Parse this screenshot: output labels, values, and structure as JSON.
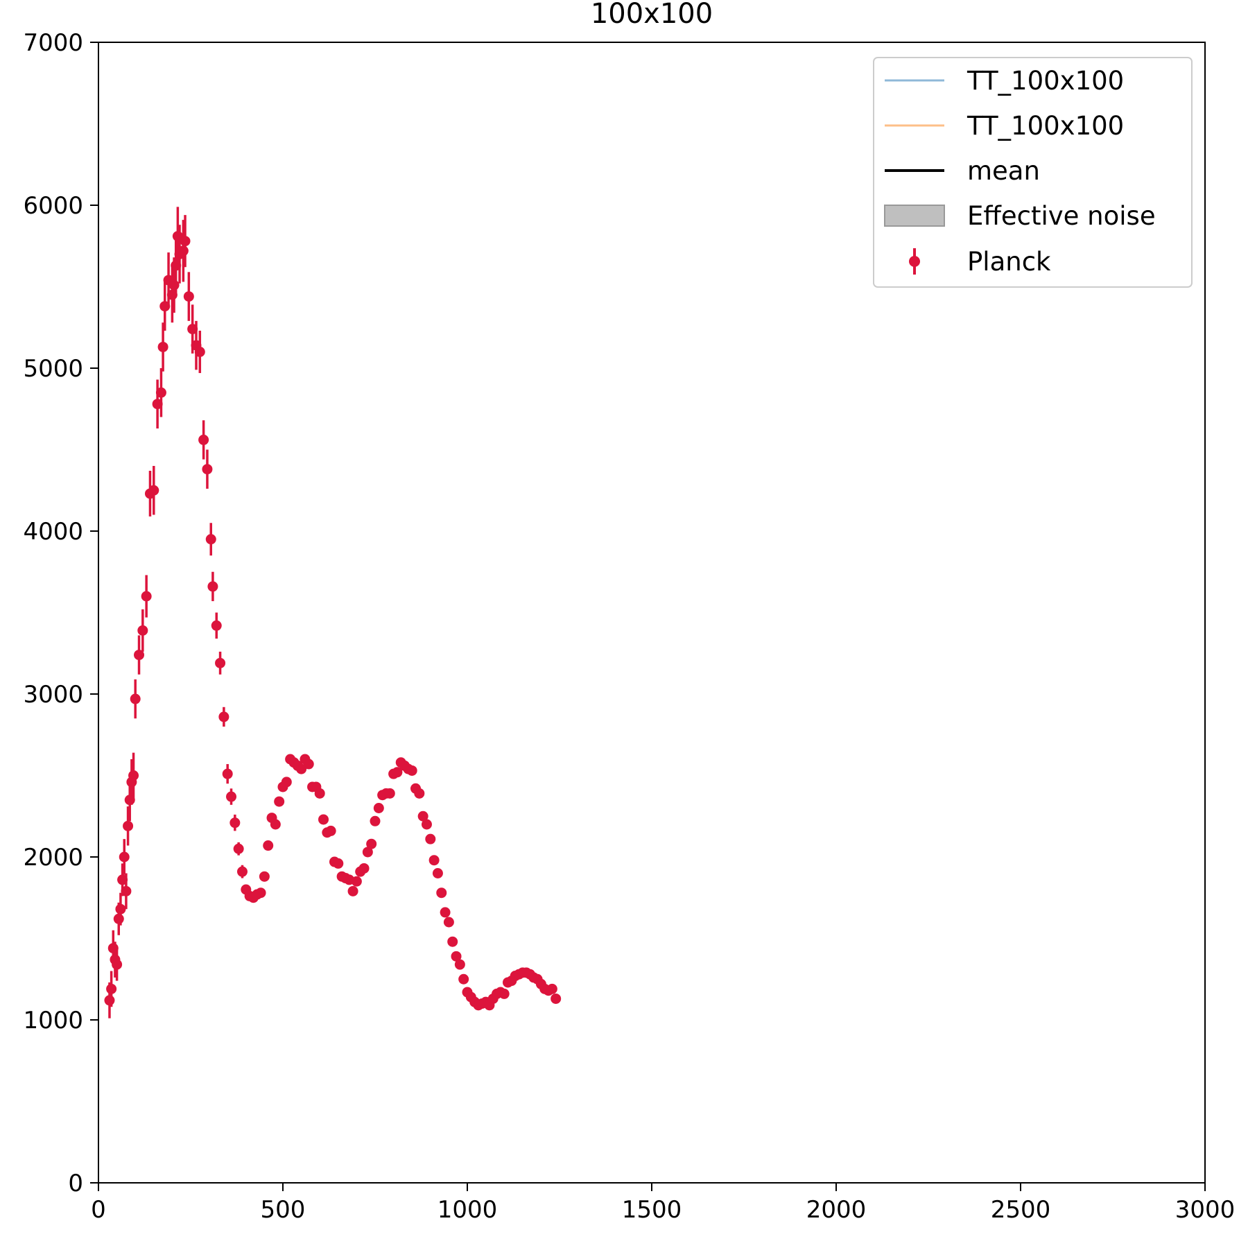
{
  "chart_data": {
    "type": "scatter",
    "title": "100x100",
    "xlabel": "",
    "ylabel": "",
    "xlim": [
      0,
      3000
    ],
    "ylim": [
      0,
      7000
    ],
    "x_ticks": [
      0,
      500,
      1000,
      1500,
      2000,
      2500,
      3000
    ],
    "x_tick_labels": [
      "0",
      "500",
      "1000",
      "1500",
      "2000",
      "2500",
      "3000"
    ],
    "y_ticks": [
      0,
      1000,
      2000,
      3000,
      4000,
      5000,
      6000,
      7000
    ],
    "y_tick_labels": [
      "0",
      "1000",
      "2000",
      "3000",
      "4000",
      "5000",
      "6000",
      "7000"
    ],
    "grid": false,
    "legend_position": "top-right",
    "legend": [
      {
        "label": "TT_100x100",
        "kind": "line",
        "color": "#8fb8d8"
      },
      {
        "label": "TT_100x100",
        "kind": "line",
        "color": "#fdbf88"
      },
      {
        "label": "mean",
        "kind": "line",
        "color": "#000000"
      },
      {
        "label": "Effective noise",
        "kind": "patch",
        "color": "#bfbfbf"
      },
      {
        "label": "Planck",
        "kind": "errorbar",
        "color": "#dc143c"
      }
    ],
    "series": [
      {
        "name": "Planck",
        "color": "#dc143c",
        "points": [
          [
            30,
            1120,
            110
          ],
          [
            35,
            1190,
            110
          ],
          [
            40,
            1440,
            110
          ],
          [
            45,
            1370,
            110
          ],
          [
            50,
            1340,
            100
          ],
          [
            55,
            1620,
            100
          ],
          [
            60,
            1680,
            100
          ],
          [
            65,
            1860,
            100
          ],
          [
            70,
            2000,
            110
          ],
          [
            75,
            1790,
            110
          ],
          [
            80,
            2190,
            120
          ],
          [
            85,
            2350,
            130
          ],
          [
            90,
            2460,
            140
          ],
          [
            95,
            2500,
            140
          ],
          [
            100,
            2970,
            120
          ],
          [
            110,
            3240,
            120
          ],
          [
            120,
            3390,
            130
          ],
          [
            130,
            3600,
            130
          ],
          [
            140,
            4230,
            140
          ],
          [
            150,
            4250,
            150
          ],
          [
            160,
            4780,
            150
          ],
          [
            170,
            4850,
            150
          ],
          [
            175,
            5130,
            150
          ],
          [
            180,
            5380,
            150
          ],
          [
            190,
            5540,
            170
          ],
          [
            200,
            5450,
            170
          ],
          [
            205,
            5510,
            170
          ],
          [
            210,
            5630,
            180
          ],
          [
            215,
            5810,
            180
          ],
          [
            220,
            5700,
            180
          ],
          [
            230,
            5720,
            190
          ],
          [
            235,
            5780,
            160
          ],
          [
            245,
            5440,
            150
          ],
          [
            255,
            5240,
            150
          ],
          [
            265,
            5140,
            150
          ],
          [
            275,
            5100,
            130
          ],
          [
            285,
            4560,
            120
          ],
          [
            295,
            4380,
            120
          ],
          [
            305,
            3950,
            100
          ],
          [
            310,
            3660,
            90
          ],
          [
            320,
            3420,
            80
          ],
          [
            330,
            3190,
            70
          ],
          [
            340,
            2860,
            60
          ],
          [
            350,
            2510,
            60
          ],
          [
            360,
            2370,
            50
          ],
          [
            370,
            2210,
            50
          ],
          [
            380,
            2050,
            40
          ],
          [
            390,
            1910,
            40
          ],
          [
            400,
            1800,
            30
          ],
          [
            410,
            1760,
            30
          ],
          [
            420,
            1750,
            30
          ],
          [
            430,
            1770,
            30
          ],
          [
            440,
            1780,
            30
          ],
          [
            450,
            1880,
            30
          ],
          [
            460,
            2070,
            30
          ],
          [
            470,
            2240,
            30
          ],
          [
            480,
            2200,
            30
          ],
          [
            490,
            2340,
            30
          ],
          [
            500,
            2430,
            30
          ],
          [
            510,
            2460,
            30
          ],
          [
            520,
            2600,
            30
          ],
          [
            530,
            2580,
            30
          ],
          [
            540,
            2560,
            30
          ],
          [
            550,
            2540,
            30
          ],
          [
            560,
            2600,
            30
          ],
          [
            570,
            2570,
            30
          ],
          [
            580,
            2430,
            30
          ],
          [
            590,
            2430,
            30
          ],
          [
            600,
            2390,
            30
          ],
          [
            610,
            2230,
            30
          ],
          [
            620,
            2150,
            30
          ],
          [
            630,
            2160,
            30
          ],
          [
            640,
            1970,
            30
          ],
          [
            650,
            1960,
            30
          ],
          [
            660,
            1880,
            30
          ],
          [
            670,
            1870,
            30
          ],
          [
            680,
            1860,
            30
          ],
          [
            690,
            1790,
            30
          ],
          [
            700,
            1850,
            30
          ],
          [
            710,
            1910,
            30
          ],
          [
            720,
            1930,
            30
          ],
          [
            730,
            2030,
            30
          ],
          [
            740,
            2080,
            30
          ],
          [
            750,
            2220,
            30
          ],
          [
            760,
            2300,
            30
          ],
          [
            770,
            2380,
            30
          ],
          [
            780,
            2390,
            30
          ],
          [
            790,
            2390,
            30
          ],
          [
            800,
            2510,
            30
          ],
          [
            810,
            2520,
            30
          ],
          [
            820,
            2580,
            30
          ],
          [
            830,
            2560,
            30
          ],
          [
            840,
            2540,
            30
          ],
          [
            850,
            2530,
            30
          ],
          [
            860,
            2420,
            30
          ],
          [
            870,
            2390,
            30
          ],
          [
            880,
            2250,
            30
          ],
          [
            890,
            2200,
            30
          ],
          [
            900,
            2110,
            30
          ],
          [
            910,
            1980,
            30
          ],
          [
            920,
            1900,
            30
          ],
          [
            930,
            1780,
            30
          ],
          [
            940,
            1660,
            30
          ],
          [
            950,
            1600,
            30
          ],
          [
            960,
            1480,
            30
          ],
          [
            970,
            1390,
            30
          ],
          [
            980,
            1340,
            30
          ],
          [
            990,
            1250,
            30
          ],
          [
            1000,
            1170,
            30
          ],
          [
            1010,
            1140,
            30
          ],
          [
            1020,
            1110,
            30
          ],
          [
            1030,
            1090,
            30
          ],
          [
            1040,
            1100,
            30
          ],
          [
            1050,
            1110,
            30
          ],
          [
            1060,
            1090,
            30
          ],
          [
            1070,
            1130,
            30
          ],
          [
            1080,
            1160,
            30
          ],
          [
            1090,
            1170,
            30
          ],
          [
            1100,
            1160,
            30
          ],
          [
            1110,
            1230,
            30
          ],
          [
            1120,
            1240,
            30
          ],
          [
            1130,
            1270,
            30
          ],
          [
            1140,
            1280,
            30
          ],
          [
            1150,
            1290,
            30
          ],
          [
            1160,
            1290,
            30
          ],
          [
            1170,
            1280,
            30
          ],
          [
            1180,
            1260,
            30
          ],
          [
            1190,
            1250,
            30
          ],
          [
            1200,
            1220,
            30
          ],
          [
            1210,
            1190,
            30
          ],
          [
            1220,
            1180,
            30
          ],
          [
            1230,
            1190,
            30
          ],
          [
            1240,
            1130,
            30
          ]
        ]
      }
    ]
  }
}
